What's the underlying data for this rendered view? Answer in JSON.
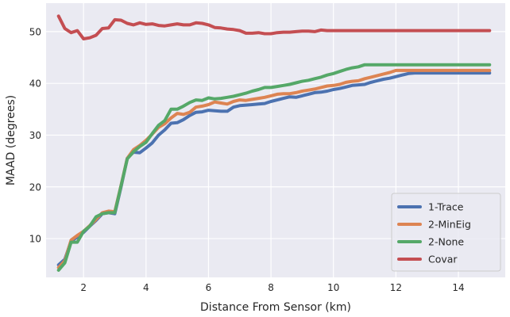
{
  "chart_data": {
    "type": "line",
    "title": "",
    "xlabel": "Distance From Sensor (km)",
    "ylabel": "MAAD (degrees)",
    "xlim": [
      0.8,
      15.5
    ],
    "ylim": [
      2.5,
      55.5
    ],
    "xticks": [
      2,
      4,
      6,
      8,
      10,
      12,
      14
    ],
    "yticks": [
      10,
      20,
      30,
      40,
      50
    ],
    "grid": true,
    "background": "#eaeaf2",
    "legend_position": "lower-right",
    "x": [
      1.2,
      1.4,
      1.6,
      1.8,
      2.0,
      2.2,
      2.4,
      2.6,
      2.8,
      3.0,
      3.2,
      3.4,
      3.6,
      3.8,
      4.0,
      4.2,
      4.4,
      4.6,
      4.8,
      5.0,
      5.2,
      5.4,
      5.6,
      5.8,
      6.0,
      6.2,
      6.4,
      6.6,
      6.8,
      7.0,
      7.2,
      7.4,
      7.6,
      7.8,
      8.0,
      8.2,
      8.4,
      8.6,
      8.8,
      9.0,
      9.2,
      9.4,
      9.6,
      9.8,
      10.0,
      10.2,
      10.4,
      10.6,
      10.8,
      11.0,
      11.2,
      11.4,
      11.6,
      11.8,
      12.0,
      12.2,
      12.4,
      12.6,
      12.8,
      13.0,
      13.2,
      13.4,
      13.6,
      13.8,
      14.0,
      14.2,
      14.4,
      14.6,
      14.8,
      15.0
    ],
    "series": [
      {
        "name": "1-Trace",
        "color": "#4c72b0",
        "values": [
          4.9,
          6.0,
          9.5,
          10.3,
          11.2,
          12.4,
          13.5,
          14.8,
          15.0,
          14.8,
          20.0,
          25.5,
          26.7,
          26.6,
          27.5,
          28.5,
          30.0,
          31.0,
          32.3,
          32.4,
          33.0,
          33.8,
          34.4,
          34.5,
          34.8,
          34.7,
          34.6,
          34.6,
          35.4,
          35.7,
          35.8,
          35.9,
          36.0,
          36.1,
          36.5,
          36.8,
          37.1,
          37.4,
          37.3,
          37.6,
          37.9,
          38.2,
          38.3,
          38.5,
          38.8,
          39.0,
          39.3,
          39.6,
          39.7,
          39.8,
          40.2,
          40.5,
          40.8,
          41.0,
          41.3,
          41.6,
          41.9,
          42.0,
          42.0,
          42.0,
          42.0,
          42.0,
          42.0,
          42.0,
          42.0,
          42.0,
          42.0,
          42.0,
          42.0,
          42.0
        ]
      },
      {
        "name": "2-MinEig",
        "color": "#dd8452",
        "values": [
          4.4,
          5.7,
          9.7,
          10.6,
          11.4,
          12.5,
          13.7,
          15.0,
          15.3,
          15.2,
          20.3,
          25.5,
          27.2,
          28.0,
          29.0,
          30.2,
          31.5,
          32.2,
          33.3,
          34.2,
          34.0,
          34.4,
          35.4,
          35.6,
          35.9,
          36.4,
          36.2,
          36.0,
          36.5,
          36.8,
          36.7,
          36.9,
          37.1,
          37.3,
          37.6,
          37.9,
          38.0,
          38.0,
          38.2,
          38.5,
          38.7,
          38.9,
          39.2,
          39.5,
          39.6,
          39.8,
          40.2,
          40.4,
          40.5,
          40.9,
          41.2,
          41.5,
          41.8,
          42.1,
          42.5,
          42.5,
          42.5,
          42.5,
          42.5,
          42.5,
          42.5,
          42.5,
          42.5,
          42.5,
          42.5,
          42.5,
          42.5,
          42.5,
          42.5,
          42.5
        ]
      },
      {
        "name": "2-None",
        "color": "#55a868",
        "values": [
          3.9,
          5.3,
          9.3,
          9.3,
          11.4,
          12.4,
          14.2,
          14.8,
          15.0,
          15.0,
          20.2,
          25.4,
          26.8,
          27.8,
          28.6,
          30.3,
          31.9,
          32.8,
          35.0,
          35.0,
          35.6,
          36.3,
          36.8,
          36.7,
          37.2,
          37.0,
          37.1,
          37.3,
          37.5,
          37.8,
          38.1,
          38.5,
          38.8,
          39.2,
          39.2,
          39.4,
          39.6,
          39.8,
          40.1,
          40.4,
          40.6,
          40.9,
          41.2,
          41.6,
          41.9,
          42.3,
          42.7,
          43.0,
          43.2,
          43.6,
          43.6,
          43.6,
          43.6,
          43.6,
          43.6,
          43.6,
          43.6,
          43.6,
          43.6,
          43.6,
          43.6,
          43.6,
          43.6,
          43.6,
          43.6,
          43.6,
          43.6,
          43.6,
          43.6,
          43.6
        ]
      },
      {
        "name": "Covar",
        "color": "#c44e52",
        "values": [
          53.0,
          50.6,
          49.8,
          50.2,
          48.6,
          48.8,
          49.3,
          50.6,
          50.7,
          52.3,
          52.2,
          51.6,
          51.3,
          51.7,
          51.4,
          51.5,
          51.2,
          51.1,
          51.3,
          51.5,
          51.3,
          51.3,
          51.7,
          51.6,
          51.3,
          50.8,
          50.7,
          50.5,
          50.4,
          50.2,
          49.7,
          49.7,
          49.8,
          49.6,
          49.6,
          49.8,
          49.9,
          49.9,
          50.0,
          50.1,
          50.1,
          50.0,
          50.3,
          50.2,
          50.2,
          50.2,
          50.2,
          50.2,
          50.2,
          50.2,
          50.2,
          50.2,
          50.2,
          50.2,
          50.2,
          50.2,
          50.2,
          50.2,
          50.2,
          50.2,
          50.2,
          50.2,
          50.2,
          50.2,
          50.2,
          50.2,
          50.2,
          50.2,
          50.2,
          50.2
        ]
      }
    ]
  }
}
